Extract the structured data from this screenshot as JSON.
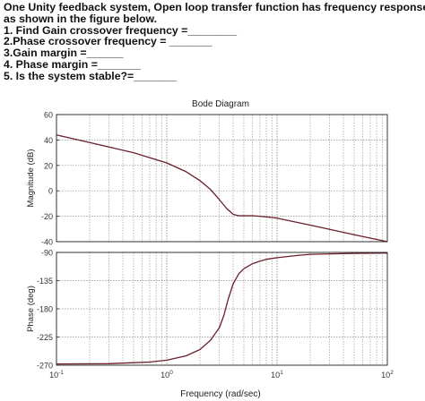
{
  "question": {
    "lines": [
      "One Unity feedback system, Open loop transfer function has frequency response,",
      "as shown in the figure below.",
      "1. Find Gain crossover frequency =________",
      "2.Phase crossover frequency = _______",
      "3.Gain margin =______",
      "4. Phase margin =_______",
      "5. Is the system stable?=_______"
    ]
  },
  "colors": {
    "curve": "#6b1f2b",
    "grid": "#8a8a8a",
    "axis": "#222222",
    "tick_label": "#333333"
  },
  "chart_data": {
    "type": "line",
    "title": "Bode Diagram",
    "xlabel": "Frequency  (rad/sec)",
    "xscale": "log",
    "xlim": [
      0.1,
      100
    ],
    "x_ticks": [
      {
        "base": "10",
        "exp": "-1"
      },
      {
        "base": "10",
        "exp": "0"
      },
      {
        "base": "10",
        "exp": "1"
      },
      {
        "base": "10",
        "exp": "2"
      }
    ],
    "grid": true,
    "panels": [
      {
        "ylabel": "Magnitude (dB)",
        "ylim": [
          -40,
          60
        ],
        "yticks": [
          "60",
          "40",
          "20",
          "0",
          "-20",
          "-40"
        ],
        "series": [
          {
            "x": [
              0.1,
              0.2,
              0.5,
              1,
              1.5,
              2,
              2.5,
              3,
              3.5,
              4,
              4.5,
              5,
              6,
              7,
              8,
              9,
              10,
              20,
              50,
              100
            ],
            "y": [
              44,
              38,
              30,
              22,
              15,
              8,
              1,
              -7,
              -14,
              -18.5,
              -19.6,
              -19.6,
              -19.6,
              -20,
              -20.5,
              -21,
              -21.5,
              -27,
              -34.5,
              -40
            ]
          }
        ]
      },
      {
        "ylabel": "Phase (deg)",
        "ylim": [
          -270,
          -90
        ],
        "yticks": [
          "-90",
          "-135",
          "-180",
          "-225",
          "-270"
        ],
        "series": [
          {
            "x": [
              0.1,
              0.3,
              0.5,
              0.7,
              1,
              1.5,
              2,
              2.5,
              3,
              3.3,
              3.6,
              4,
              4.5,
              5,
              6,
              7,
              8,
              10,
              15,
              20,
              50,
              100
            ],
            "y": [
              -268,
              -267.5,
              -266,
              -265,
              -262,
              -255,
              -245,
              -230,
              -210,
              -190,
              -165,
              -140,
              -124,
              -116,
              -108,
              -104,
              -101,
              -98.5,
              -95,
              -93,
              -91.5,
              -91
            ]
          }
        ]
      }
    ]
  }
}
